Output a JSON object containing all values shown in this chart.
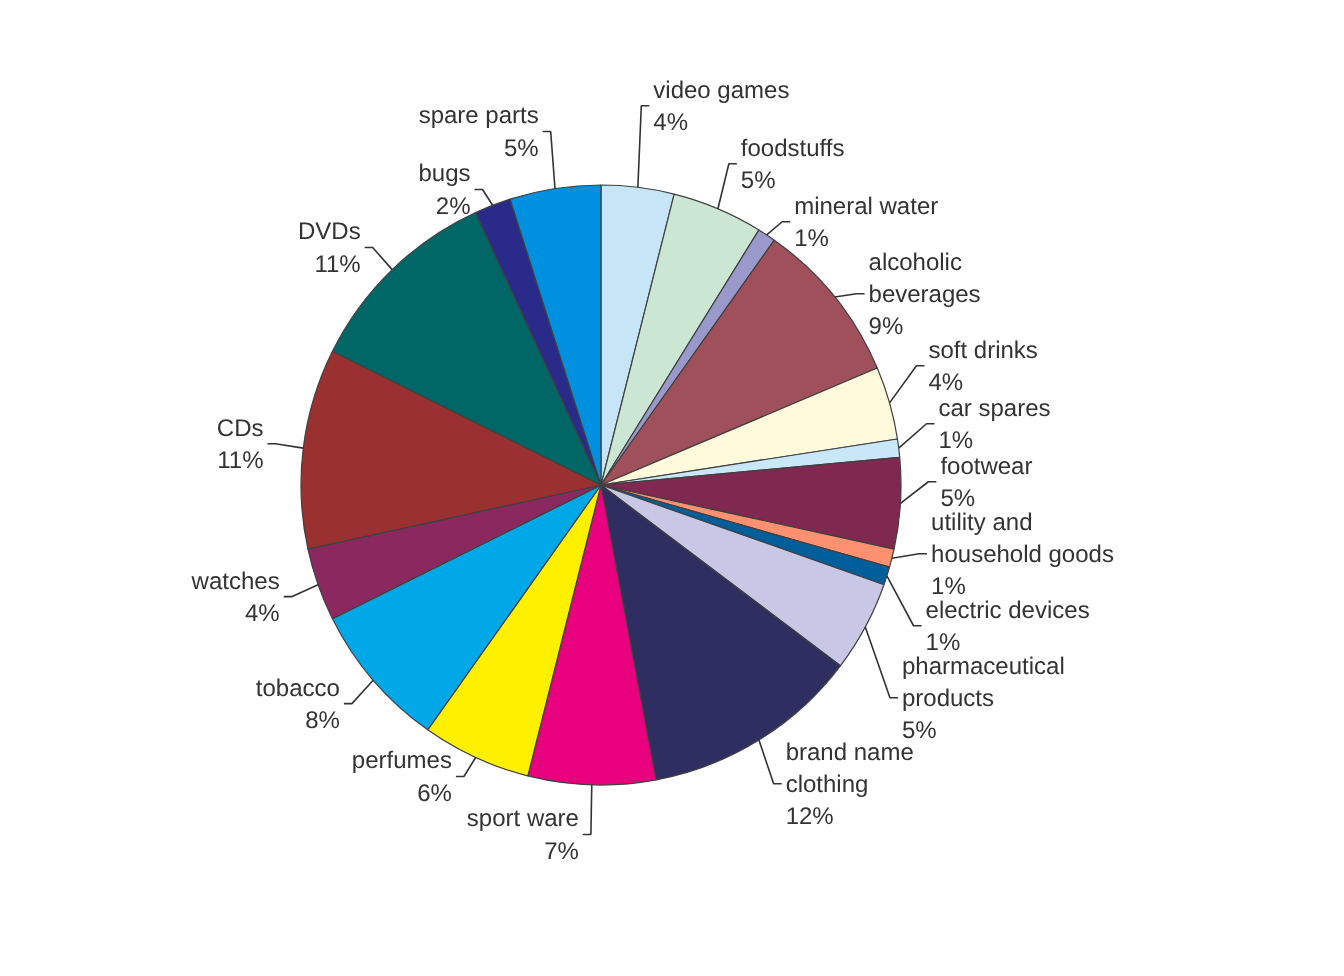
{
  "chart_data": {
    "type": "pie",
    "categories": [
      "video games",
      "foodstuffs",
      "mineral water",
      "alcoholic beverages",
      "soft drinks",
      "car spares",
      "footwear",
      "utility and household goods",
      "electric devices",
      "pharmaceutical products",
      "brand name clothing",
      "sport ware",
      "perfumes",
      "tobacco",
      "watches",
      "CDs",
      "DVDs",
      "bugs",
      "spare parts"
    ],
    "values": [
      4,
      5,
      1,
      9,
      4,
      1,
      5,
      1,
      1,
      5,
      12,
      7,
      6,
      8,
      4,
      11,
      11,
      2,
      5
    ],
    "value_labels": [
      "4%",
      "5%",
      "1%",
      "9%",
      "4%",
      "1%",
      "5%",
      "1%",
      "1%",
      "5%",
      "12%",
      "7%",
      "6%",
      "8%",
      "4%",
      "11%",
      "11%",
      "2%",
      "5%"
    ],
    "colors": [
      "#c6e6f8",
      "#cce6d4",
      "#9999cc",
      "#a0505a",
      "#fffadc",
      "#c8e8f8",
      "#7f2850",
      "#ff9070",
      "#005f9a",
      "#c8c8e6",
      "#2e2e60",
      "#e8007f",
      "#fff000",
      "#00a8e8",
      "#8c2860",
      "#9a3030",
      "#006666",
      "#2a2a8a",
      "#0090e0"
    ]
  }
}
